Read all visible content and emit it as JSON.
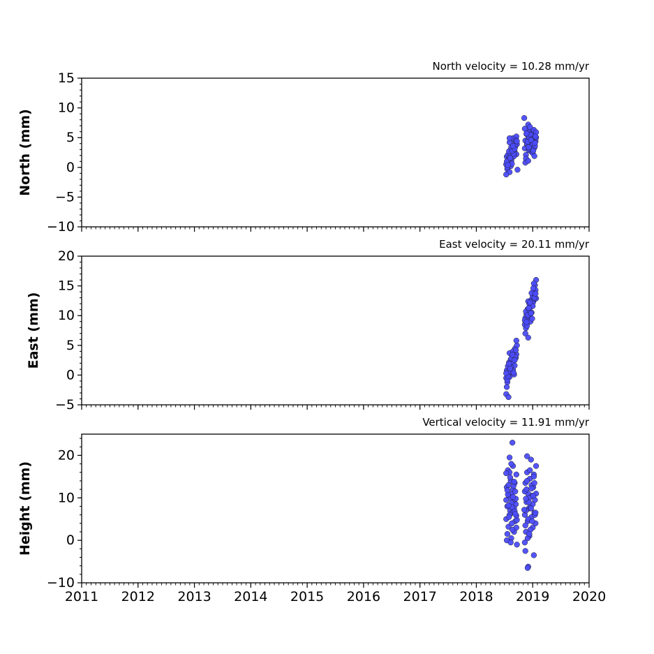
{
  "chart_data": [
    {
      "type": "scatter",
      "title": "North velocity = 10.28 mm/yr",
      "ylabel": "North (mm)",
      "xlim": [
        2011,
        2020
      ],
      "ylim": [
        -10,
        15
      ],
      "yticks": [
        15,
        10,
        5,
        0,
        -5,
        -10
      ],
      "ytick_labels": [
        "15",
        "10",
        "5",
        "0",
        "−5",
        "−10"
      ],
      "xticks": [
        2011,
        2012,
        2013,
        2014,
        2015,
        2016,
        2017,
        2018,
        2019,
        2020
      ],
      "show_xtick_labels": false,
      "color": "#4c4cff",
      "edge_color": "#1a1a1a",
      "series": [
        {
          "x": [
            2018.53,
            2018.54,
            2018.55,
            2018.56,
            2018.57,
            2018.58,
            2018.59,
            2018.6,
            2018.61,
            2018.62,
            2018.63,
            2018.64,
            2018.65,
            2018.66,
            2018.67,
            2018.68,
            2018.69,
            2018.7,
            2018.71,
            2018.72,
            2018.53,
            2018.55,
            2018.57,
            2018.59,
            2018.61,
            2018.63,
            2018.65,
            2018.67,
            2018.69,
            2018.71,
            2018.54,
            2018.58,
            2018.62,
            2018.66,
            2018.7,
            2018.56,
            2018.6,
            2018.64,
            2018.68,
            2018.72,
            2018.59,
            2018.65,
            2018.73,
            2018.86,
            2018.87,
            2018.88,
            2018.89,
            2018.9,
            2018.91,
            2018.92,
            2018.93,
            2018.94,
            2018.95,
            2018.96,
            2018.97,
            2018.98,
            2018.99,
            2019.0,
            2019.01,
            2019.02,
            2019.03,
            2019.04,
            2019.05,
            2019.06,
            2018.86,
            2018.88,
            2018.9,
            2018.92,
            2018.94,
            2018.96,
            2018.98,
            2019.0,
            2019.02,
            2019.04,
            2019.06,
            2018.87,
            2018.91,
            2018.95,
            2018.99,
            2019.03,
            2018.89,
            2018.93,
            2018.97,
            2019.01,
            2019.05,
            2018.85,
            2018.92,
            2019.04
          ],
          "y": [
            0.5,
            1.8,
            -0.3,
            2.1,
            0.9,
            1.5,
            -0.8,
            2.4,
            0.2,
            1.1,
            2.9,
            1.7,
            3.2,
            2.0,
            4.1,
            2.6,
            3.5,
            4.8,
            2.2,
            3.9,
            -1.2,
            0.0,
            1.3,
            4.2,
            3.0,
            0.6,
            4.9,
            1.9,
            3.8,
            5.2,
            1.0,
            2.7,
            3.4,
            2.3,
            4.5,
            0.4,
            1.6,
            2.8,
            3.1,
            4.4,
            4.9,
            3.6,
            -0.4,
            3.2,
            4.5,
            2.1,
            5.6,
            3.9,
            6.2,
            4.8,
            2.9,
            5.1,
            3.5,
            6.0,
            4.2,
            2.6,
            5.8,
            3.8,
            4.9,
            6.1,
            3.3,
            5.3,
            4.4,
            5.0,
            6.5,
            1.5,
            4.0,
            7.2,
            3.1,
            5.5,
            4.7,
            2.4,
            6.3,
            3.6,
            5.9,
            0.8,
            4.3,
            6.8,
            3.0,
            1.9,
            5.7,
            3.4,
            4.6,
            2.8,
            5.2,
            8.3,
            1.1,
            4.1
          ]
        }
      ]
    },
    {
      "type": "scatter",
      "title": "East velocity = 20.11 mm/yr",
      "ylabel": "East (mm)",
      "xlim": [
        2011,
        2020
      ],
      "ylim": [
        -5,
        20
      ],
      "yticks": [
        20,
        15,
        10,
        5,
        0,
        -5
      ],
      "ytick_labels": [
        "20",
        "15",
        "10",
        "5",
        "0",
        "−5"
      ],
      "xticks": [
        2011,
        2012,
        2013,
        2014,
        2015,
        2016,
        2017,
        2018,
        2019,
        2020
      ],
      "show_xtick_labels": false,
      "color": "#4c4cff",
      "edge_color": "#1a1a1a",
      "series": [
        {
          "x": [
            2018.53,
            2018.54,
            2018.55,
            2018.56,
            2018.57,
            2018.58,
            2018.59,
            2018.6,
            2018.61,
            2018.62,
            2018.63,
            2018.64,
            2018.65,
            2018.66,
            2018.67,
            2018.68,
            2018.69,
            2018.7,
            2018.71,
            2018.72,
            2018.53,
            2018.55,
            2018.57,
            2018.59,
            2018.61,
            2018.63,
            2018.65,
            2018.67,
            2018.69,
            2018.71,
            2018.54,
            2018.58,
            2018.62,
            2018.66,
            2018.7,
            2018.56,
            2018.6,
            2018.64,
            2018.68,
            2018.57,
            2018.53,
            2018.86,
            2018.87,
            2018.88,
            2018.89,
            2018.9,
            2018.91,
            2018.92,
            2018.93,
            2018.94,
            2018.95,
            2018.96,
            2018.97,
            2018.98,
            2018.99,
            2019.0,
            2019.01,
            2019.02,
            2019.03,
            2019.04,
            2019.05,
            2019.06,
            2018.86,
            2018.88,
            2018.9,
            2018.92,
            2018.94,
            2018.96,
            2018.98,
            2019.0,
            2019.02,
            2019.04,
            2019.06,
            2018.87,
            2018.91,
            2018.95,
            2018.99,
            2019.03,
            2018.89,
            2018.93,
            2018.97,
            2019.01,
            2019.05,
            2018.92
          ],
          "y": [
            -0.5,
            0.8,
            -1.2,
            1.5,
            0.2,
            2.1,
            -0.3,
            1.0,
            2.6,
            0.5,
            1.8,
            3.2,
            0.9,
            2.4,
            3.8,
            1.6,
            4.5,
            2.9,
            3.5,
            5.0,
            -3.2,
            -0.8,
            0.6,
            3.7,
            1.3,
            2.2,
            4.0,
            0.1,
            3.1,
            5.8,
            -2.0,
            1.9,
            2.8,
            0.4,
            4.2,
            -0.2,
            1.1,
            3.4,
            2.5,
            -3.7,
            0.3,
            8.5,
            9.6,
            7.9,
            10.2,
            8.8,
            11.1,
            9.4,
            10.8,
            12.0,
            9.9,
            11.5,
            12.6,
            10.5,
            11.9,
            13.2,
            12.3,
            14.0,
            13.5,
            15.1,
            14.3,
            16.0,
            9.2,
            10.7,
            8.3,
            12.4,
            11.0,
            9.0,
            13.8,
            11.6,
            15.4,
            12.8,
            12.9,
            7.0,
            10.1,
            12.2,
            9.5,
            13.0,
            8.9,
            11.3,
            10.4,
            14.6,
            13.7,
            6.3
          ]
        }
      ]
    },
    {
      "type": "scatter",
      "title": "Vertical velocity = 11.91 mm/yr",
      "ylabel": "Height (mm)",
      "xlim": [
        2011,
        2020
      ],
      "ylim": [
        -10,
        25
      ],
      "yticks": [
        20,
        10,
        0,
        -10
      ],
      "ytick_labels": [
        "20",
        "10",
        "0",
        "−10"
      ],
      "xticks": [
        2011,
        2012,
        2013,
        2014,
        2015,
        2016,
        2017,
        2018,
        2019,
        2020
      ],
      "xtick_labels": [
        "2011",
        "2012",
        "2013",
        "2014",
        "2015",
        "2016",
        "2017",
        "2018",
        "2019",
        "2020"
      ],
      "show_xtick_labels": true,
      "color": "#4c4cff",
      "edge_color": "#1a1a1a",
      "series": [
        {
          "x": [
            2018.53,
            2018.54,
            2018.55,
            2018.56,
            2018.57,
            2018.58,
            2018.59,
            2018.6,
            2018.61,
            2018.62,
            2018.63,
            2018.64,
            2018.65,
            2018.66,
            2018.67,
            2018.68,
            2018.69,
            2018.7,
            2018.71,
            2018.72,
            2018.53,
            2018.55,
            2018.57,
            2018.59,
            2018.61,
            2018.63,
            2018.65,
            2018.67,
            2018.69,
            2018.71,
            2018.54,
            2018.56,
            2018.58,
            2018.6,
            2018.62,
            2018.64,
            2018.66,
            2018.68,
            2018.7,
            2018.72,
            2018.55,
            2018.59,
            2018.63,
            2018.67,
            2018.71,
            2018.57,
            2018.61,
            2018.65,
            2018.69,
            2018.53,
            2018.64,
            2018.62,
            2018.86,
            2018.87,
            2018.88,
            2018.89,
            2018.9,
            2018.91,
            2018.92,
            2018.93,
            2018.94,
            2018.95,
            2018.96,
            2018.97,
            2018.98,
            2018.99,
            2019.0,
            2019.01,
            2019.02,
            2019.03,
            2019.04,
            2019.05,
            2019.06,
            2018.86,
            2018.88,
            2018.9,
            2018.92,
            2018.94,
            2018.96,
            2018.98,
            2019.0,
            2019.02,
            2019.04,
            2019.06,
            2018.87,
            2018.89,
            2018.91,
            2018.93,
            2018.95,
            2018.97,
            2018.99,
            2019.01,
            2019.03,
            2019.05,
            2018.86,
            2018.9,
            2018.94,
            2018.98,
            2019.02,
            2018.88,
            2018.92,
            2018.87,
            2018.91,
            2018.85
          ],
          "y": [
            5.0,
            12.5,
            8.0,
            16.5,
            3.2,
            10.5,
            19.5,
            7.0,
            14.0,
            0.5,
            11.0,
            6.5,
            17.5,
            9.0,
            2.0,
            13.5,
            4.5,
            8.5,
            15.5,
            -1.0,
            9.5,
            1.5,
            13.0,
            6.0,
            10.0,
            4.0,
            12.0,
            7.5,
            11.5,
            3.0,
            0.0,
            10.8,
            5.5,
            14.8,
            8.8,
            2.5,
            12.8,
            6.8,
            9.8,
            4.8,
            11.8,
            16.0,
            7.8,
            13.8,
            5.8,
            8.2,
            -0.5,
            10.2,
            6.2,
            15.8,
            23.0,
            18.0,
            6.0,
            13.5,
            2.0,
            9.0,
            16.0,
            4.5,
            11.0,
            7.5,
            1.0,
            14.5,
            8.0,
            19.0,
            5.5,
            10.5,
            3.0,
            12.5,
            15.5,
            6.5,
            9.5,
            4.0,
            17.5,
            11.5,
            7.0,
            14.0,
            5.0,
            10.0,
            2.5,
            13.0,
            8.5,
            15.0,
            6.0,
            11.0,
            3.5,
            12.0,
            0.5,
            9.0,
            16.5,
            7.5,
            4.5,
            10.5,
            13.5,
            6.5,
            -0.5,
            19.8,
            1.5,
            12.2,
            -3.5,
            9.8,
            -6.2,
            -2.5,
            -6.5,
            7.2
          ]
        }
      ]
    }
  ]
}
